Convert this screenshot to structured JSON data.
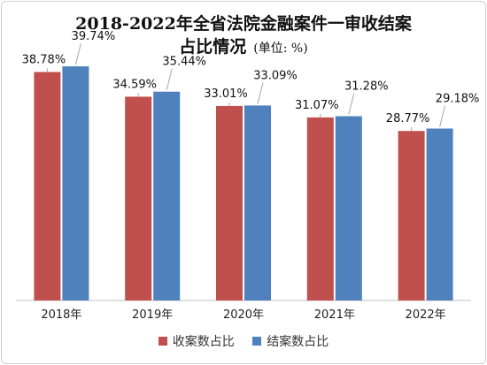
{
  "chart_data": {
    "type": "bar",
    "title": "2018-2022年全省法院金融案件一审收结案",
    "title_line2": "占比情况",
    "unit_note": "(单位: %)",
    "categories": [
      "2018年",
      "2019年",
      "2020年",
      "2021年",
      "2022年"
    ],
    "series": [
      {
        "name": "收案数占比",
        "color": "#c0504d",
        "values": [
          38.78,
          34.59,
          33.01,
          31.07,
          28.77
        ],
        "labels": [
          "38.78%",
          "34.59%",
          "33.01%",
          "31.07%",
          "28.77%"
        ]
      },
      {
        "name": "结案数占比",
        "color": "#4f81bd",
        "values": [
          39.74,
          35.44,
          33.09,
          31.28,
          29.18
        ],
        "labels": [
          "39.74%",
          "35.44%",
          "33.09%",
          "31.28%",
          "29.18%"
        ]
      }
    ],
    "ylim": [
      0,
      45
    ],
    "grid": false,
    "legend_position": "bottom"
  }
}
